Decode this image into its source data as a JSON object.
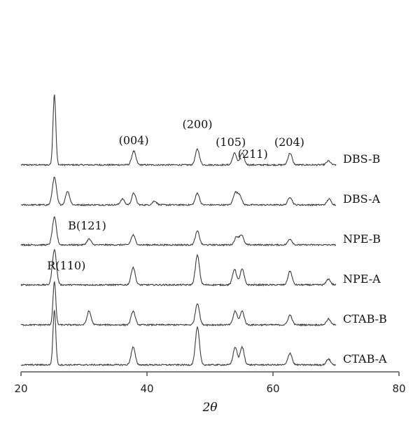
{
  "chart_data": {
    "type": "line",
    "title": "",
    "xlabel": "2θ",
    "ylabel": "",
    "xlim": [
      20,
      80
    ],
    "xticks": [
      "20",
      "40",
      "60",
      "80"
    ],
    "grid": false,
    "legend": "none",
    "line_color": "#3a3a3a",
    "series_order_top_to_bottom": [
      "DBS-B",
      "DBS-A",
      "NPE-B",
      "NPE-A",
      "CTAB-B",
      "CTAB-A"
    ],
    "series": [
      {
        "name": "DBS-B",
        "baseline": 5,
        "peaks": [
          [
            25.3,
            36
          ],
          [
            37.9,
            7
          ],
          [
            48.0,
            8
          ],
          [
            53.9,
            6
          ],
          [
            55.1,
            6
          ],
          [
            62.7,
            6
          ],
          [
            68.8,
            2
          ]
        ]
      },
      {
        "name": "DBS-A",
        "baseline": 4,
        "peaks": [
          [
            25.3,
            14
          ],
          [
            27.4,
            7
          ],
          [
            36.1,
            3
          ],
          [
            37.9,
            6
          ],
          [
            41.2,
            2
          ],
          [
            48.0,
            6
          ],
          [
            54.0,
            6
          ],
          [
            54.7,
            5
          ],
          [
            62.7,
            4
          ],
          [
            68.9,
            3
          ]
        ]
      },
      {
        "name": "NPE-B",
        "baseline": 3,
        "peaks": [
          [
            25.3,
            14
          ],
          [
            30.8,
            3
          ],
          [
            37.8,
            5
          ],
          [
            48.0,
            7
          ],
          [
            54.2,
            4
          ],
          [
            55.0,
            5
          ],
          [
            62.7,
            3
          ]
        ]
      },
      {
        "name": "NPE-A",
        "baseline": 2,
        "peaks": [
          [
            25.3,
            18
          ],
          [
            37.8,
            9
          ],
          [
            48.0,
            15
          ],
          [
            53.9,
            8
          ],
          [
            55.1,
            8
          ],
          [
            62.7,
            7
          ],
          [
            68.8,
            3
          ]
        ]
      },
      {
        "name": "CTAB-B",
        "baseline": 1,
        "peaks": [
          [
            25.3,
            22
          ],
          [
            30.8,
            7
          ],
          [
            37.8,
            7
          ],
          [
            48.0,
            11
          ],
          [
            54.0,
            7
          ],
          [
            55.1,
            7
          ],
          [
            62.7,
            5
          ],
          [
            68.8,
            3
          ]
        ]
      },
      {
        "name": "CTAB-A",
        "baseline": 0,
        "peaks": [
          [
            25.3,
            28
          ],
          [
            37.8,
            9
          ],
          [
            48.0,
            19
          ],
          [
            54.0,
            9
          ],
          [
            55.1,
            9
          ],
          [
            62.7,
            6
          ],
          [
            68.8,
            3
          ]
        ]
      }
    ],
    "annotations": [
      {
        "text": "(004)",
        "x": 37.9,
        "series": "DBS-B"
      },
      {
        "text": "(200)",
        "x": 48.0,
        "series": "DBS-B"
      },
      {
        "text": "(105)",
        "x": 53.3,
        "series": "DBS-B"
      },
      {
        "text": "(211)",
        "x": 56.8,
        "series": "DBS-B"
      },
      {
        "text": "(204)",
        "x": 62.6,
        "series": "DBS-B"
      },
      {
        "text": "B(121)",
        "x": 30.5,
        "series": "NPE-B"
      },
      {
        "text": "R(110)",
        "x": 27.2,
        "series": "NPE-A"
      }
    ]
  }
}
